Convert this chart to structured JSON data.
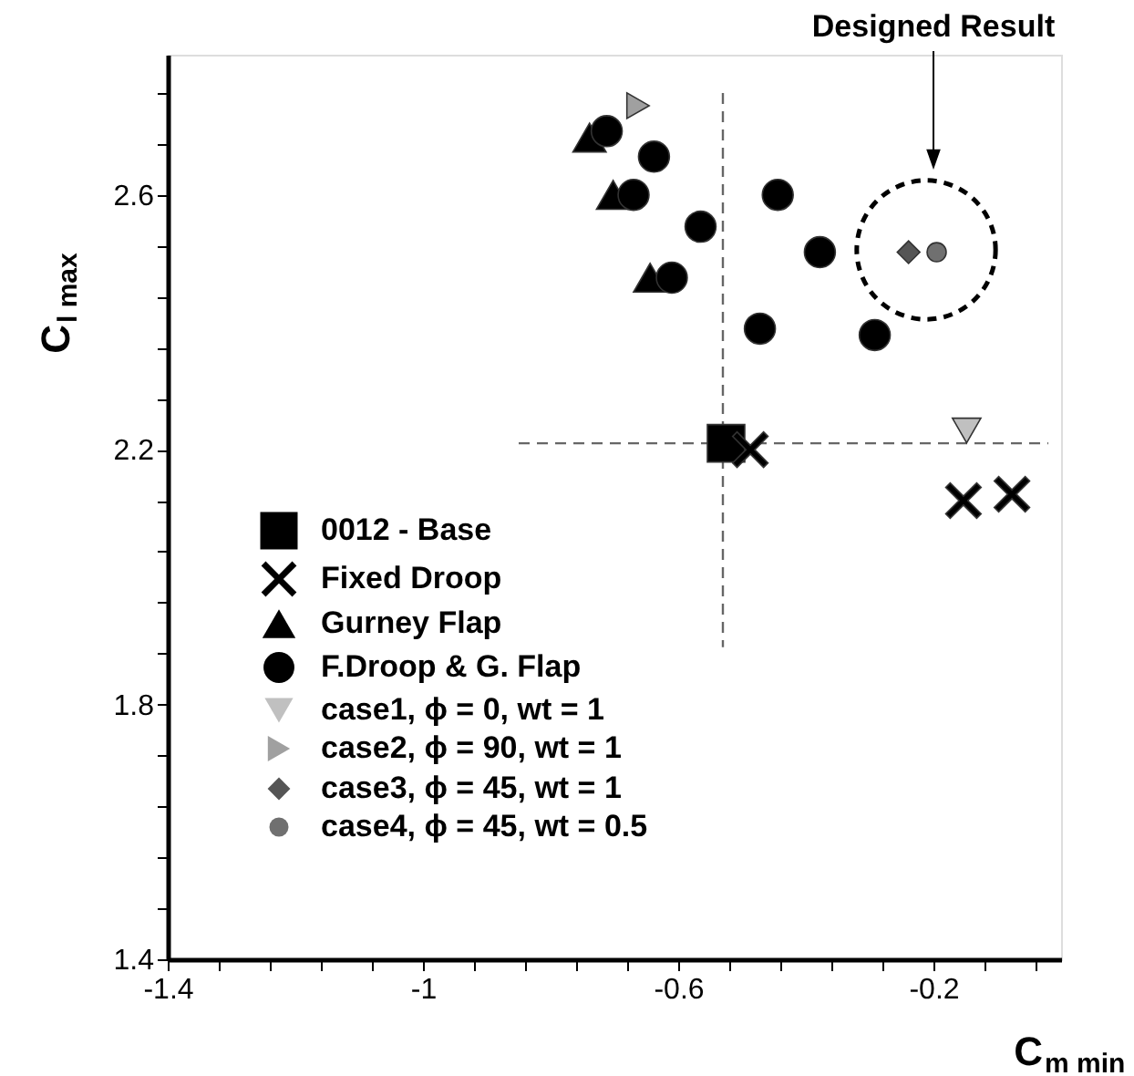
{
  "chart_data": {
    "type": "scatter",
    "xlabel": "C$_{m min}$",
    "ylabel": "C$_{l max}$",
    "xlim": [
      -1.4,
      0
    ],
    "ylim": [
      1.4,
      2.82
    ],
    "xticks": [
      -1.4,
      {
        "value": -1.32,
        "label": null
      },
      {
        "value": -1.24,
        "label": null
      },
      {
        "value": -1.16,
        "label": null
      },
      {
        "value": -1.08,
        "label": null
      },
      -1,
      {
        "value": -0.92,
        "label": null
      },
      {
        "value": -0.84,
        "label": null
      },
      {
        "value": -0.76,
        "label": null
      },
      {
        "value": -0.68,
        "label": null
      },
      -0.6,
      {
        "value": -0.52,
        "label": null
      },
      {
        "value": -0.44,
        "label": null
      },
      {
        "value": -0.36,
        "label": null
      },
      {
        "value": -0.28,
        "label": null
      },
      -0.2,
      {
        "value": -0.12,
        "label": null
      },
      {
        "value": -0.04,
        "label": null
      }
    ],
    "yticks": [
      1.4,
      {
        "value": 1.48,
        "label": null
      },
      {
        "value": 1.56,
        "label": null
      },
      {
        "value": 1.64,
        "label": null
      },
      {
        "value": 1.72,
        "label": null
      },
      1.8,
      {
        "value": 1.88,
        "label": null
      },
      {
        "value": 1.96,
        "label": null
      },
      {
        "value": 2.04,
        "label": null
      },
      {
        "value": 2.12,
        "label": null
      },
      2.2,
      {
        "value": 2.28,
        "label": null
      },
      {
        "value": 2.36,
        "label": null
      },
      {
        "value": 2.44,
        "label": null
      },
      {
        "value": 2.52,
        "label": null
      },
      2.6,
      {
        "value": 2.68,
        "label": null
      },
      {
        "value": 2.76,
        "label": null
      }
    ],
    "grid": false,
    "legend": "bottom left",
    "annotations": [
      "Designed Result"
    ],
    "series": [
      {
        "type": "line",
        "color": "#666666",
        "line_style": "dashed",
        "marker": "none",
        "x": [
          -0.85,
          -0.02,
          null,
          -0.53,
          -0.53
        ],
        "values": [
          2.21,
          2.21,
          null,
          2.76,
          1.89
        ]
      },
      {
        "name": "0012 - Base",
        "color": "#000000",
        "marker": "square",
        "x": [
          -0.525
        ],
        "values": [
          2.21
        ]
      },
      {
        "name": "Fixed Droop",
        "color": "#000000",
        "marker": "cross",
        "x": [
          -0.487,
          -0.153,
          -0.077
        ],
        "values": [
          2.2,
          2.12,
          2.13
        ]
      },
      {
        "name": "Gurney Flap",
        "color": "#000000",
        "marker": "triangle",
        "x": [
          -0.739,
          -0.702,
          -0.644
        ],
        "values": [
          2.69,
          2.6,
          2.47
        ]
      },
      {
        "name": "F.Droop & G. Flap",
        "color": "#000000",
        "marker": "circle",
        "x": [
          -0.712,
          -0.638,
          -0.67,
          -0.444,
          -0.565,
          -0.378,
          -0.61,
          -0.472,
          -0.292
        ],
        "values": [
          2.7,
          2.66,
          2.6,
          2.6,
          2.55,
          2.51,
          2.47,
          2.39,
          2.38
        ]
      },
      {
        "name": "case1, ϕ = 0,   wt = 1",
        "color": "#c0c0c0",
        "marker": "triangle_down",
        "x": [
          -0.148
        ],
        "values": [
          2.23
        ]
      },
      {
        "name": "case2, ϕ = 90, wt = 1",
        "color": "#a0a0a0",
        "marker": "triangle_right",
        "x": [
          -0.663
        ],
        "values": [
          2.74
        ]
      },
      {
        "name": "case3, ϕ = 45, wt = 1",
        "color": "#555555",
        "marker": "diamond",
        "x": [
          -0.239
        ],
        "values": [
          2.51
        ]
      },
      {
        "name": "case4, ϕ = 45, wt = 0.5",
        "color": "#707070",
        "marker": "circle",
        "x": [
          -0.195
        ],
        "values": [
          2.51
        ]
      }
    ]
  }
}
